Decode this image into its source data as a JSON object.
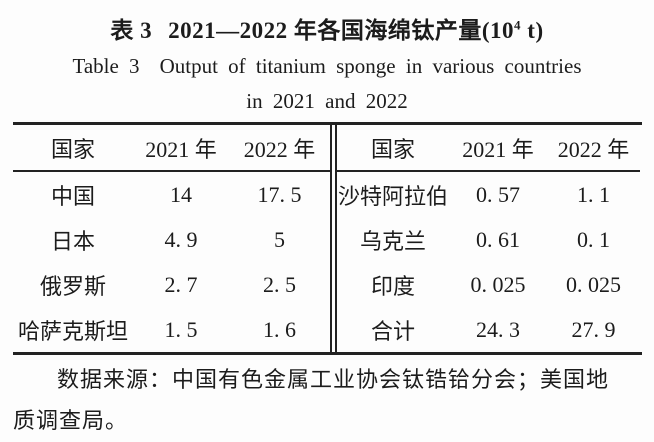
{
  "title": {
    "cn_label": "表 3",
    "cn_main": "2021—2022 年各国海绵钛产量(10",
    "cn_sup": "4",
    "cn_tail": " t)",
    "en_label": "Table 3",
    "en_main": "Output of titanium sponge in various countries",
    "en_line2": "in 2021 and 2022"
  },
  "table": {
    "left": {
      "headers": [
        "国家",
        "2021 年",
        "2022 年"
      ],
      "rows": [
        {
          "country": "中国",
          "y2021": "14",
          "y2022": "17. 5"
        },
        {
          "country": "日本",
          "y2021": "4. 9",
          "y2022": "5"
        },
        {
          "country": "俄罗斯",
          "y2021": "2. 7",
          "y2022": "2. 5"
        },
        {
          "country": "哈萨克斯坦",
          "y2021": "1. 5",
          "y2022": "1. 6"
        }
      ]
    },
    "right": {
      "headers": [
        "国家",
        "2021 年",
        "2022 年"
      ],
      "rows": [
        {
          "country": "沙特阿拉伯",
          "y2021": "0. 57",
          "y2022": "1. 1"
        },
        {
          "country": "乌克兰",
          "y2021": "0. 61",
          "y2022": "0. 1"
        },
        {
          "country": "印度",
          "y2021": "0. 025",
          "y2022": "0. 025"
        },
        {
          "country": "合计",
          "y2021": "24. 3",
          "y2022": "27. 9"
        }
      ]
    }
  },
  "footer": {
    "line1": "数据来源：中国有色金属工业协会钛锆铪分会；美国地",
    "line2": "质调查局。"
  }
}
